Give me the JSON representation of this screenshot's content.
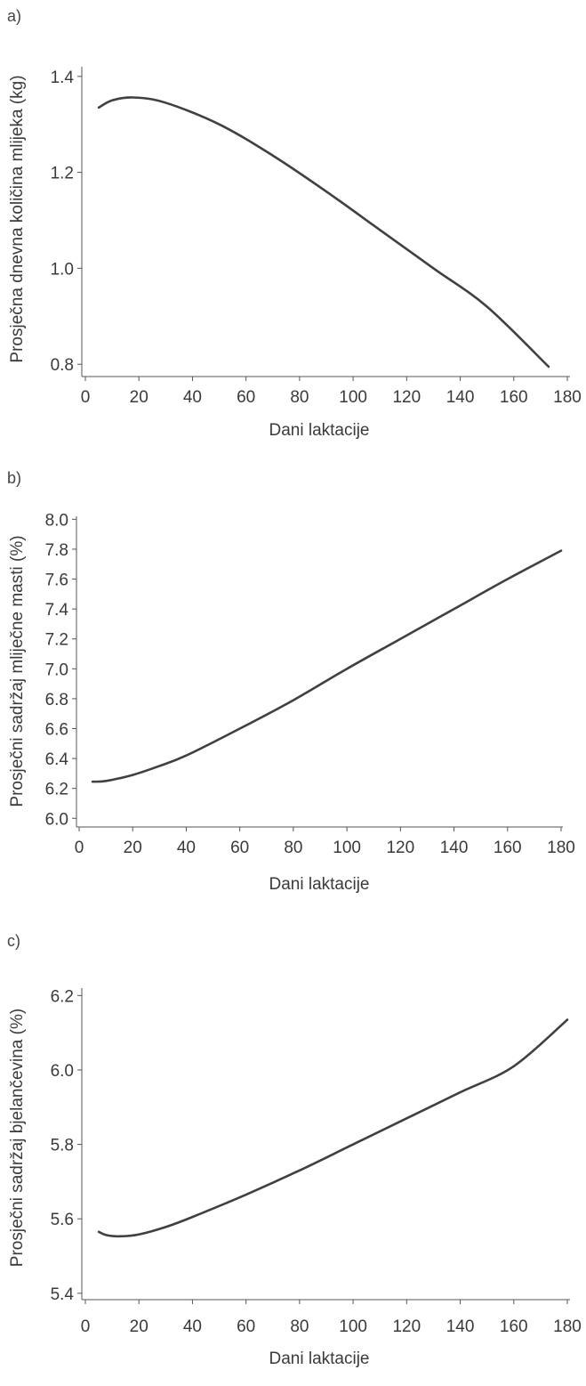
{
  "chart_data": [
    {
      "panel_label": "a)",
      "type": "line",
      "xlabel": "Dani laktacije",
      "ylabel": "Prosječna dnevna količina mlijeka (kg)",
      "xlim": [
        0,
        180
      ],
      "ylim": [
        0.78,
        1.42
      ],
      "xticks": [
        "0",
        "20",
        "40",
        "60",
        "80",
        "100",
        "120",
        "140",
        "160",
        "180"
      ],
      "yticks": [
        "0.8",
        "1.0",
        "1.2",
        "1.4"
      ],
      "series": [
        {
          "x": [
            5,
            10,
            18,
            30,
            50,
            70,
            90,
            110,
            130,
            150,
            173
          ],
          "y": [
            1.335,
            1.35,
            1.356,
            1.345,
            1.3,
            1.235,
            1.16,
            1.08,
            1.0,
            0.92,
            0.795
          ]
        }
      ]
    },
    {
      "panel_label": "b)",
      "type": "line",
      "xlabel": "Dani laktacije",
      "ylabel": "Prosječni sadržaj mliječne masti (%)",
      "xlim": [
        0,
        180
      ],
      "ylim": [
        5.96,
        8.02
      ],
      "xticks": [
        "0",
        "20",
        "40",
        "60",
        "80",
        "100",
        "120",
        "140",
        "160",
        "180"
      ],
      "yticks": [
        "6.0",
        "6.2",
        "6.4",
        "6.6",
        "6.8",
        "7.0",
        "7.2",
        "7.4",
        "7.6",
        "7.8",
        "8.0"
      ],
      "series": [
        {
          "x": [
            5,
            10,
            20,
            30,
            40,
            60,
            80,
            100,
            120,
            140,
            160,
            180
          ],
          "y": [
            6.245,
            6.25,
            6.29,
            6.35,
            6.42,
            6.6,
            6.79,
            7.0,
            7.2,
            7.4,
            7.6,
            7.79
          ]
        }
      ]
    },
    {
      "panel_label": "c)",
      "type": "line",
      "xlabel": "Dani laktacije",
      "ylabel": "Prosječni sadržaj bjelančevina (%)",
      "xlim": [
        0,
        180
      ],
      "ylim": [
        5.39,
        6.22
      ],
      "xticks": [
        "0",
        "20",
        "40",
        "60",
        "80",
        "100",
        "120",
        "140",
        "160",
        "180"
      ],
      "yticks": [
        "5.4",
        "5.6",
        "5.8",
        "6.0",
        "6.2"
      ],
      "series": [
        {
          "x": [
            5,
            8,
            13,
            20,
            30,
            40,
            60,
            80,
            100,
            120,
            140,
            160,
            180
          ],
          "y": [
            5.565,
            5.556,
            5.553,
            5.558,
            5.578,
            5.605,
            5.665,
            5.73,
            5.8,
            5.87,
            5.94,
            6.01,
            6.135
          ]
        }
      ]
    }
  ]
}
